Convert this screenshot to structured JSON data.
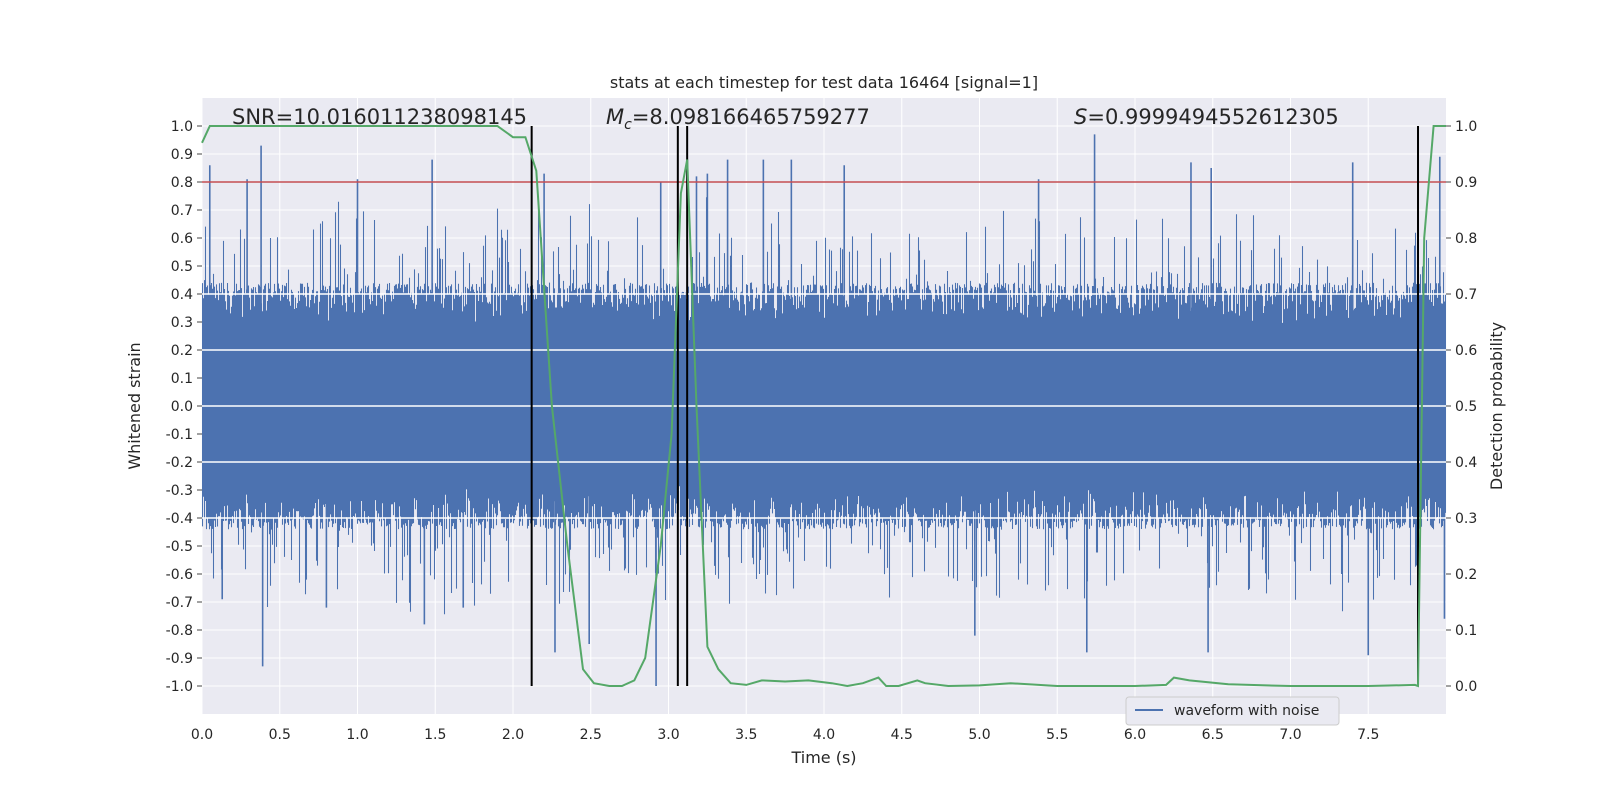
{
  "chart_data": {
    "type": "line",
    "title": "stats at each timestep for test data 16464 [signal=1]",
    "xlabel": "Time (s)",
    "ylabel": "Whitened strain",
    "y2label": "Detection probability",
    "xlim": [
      0.0,
      8.0
    ],
    "ylim": [
      -1.1,
      1.1
    ],
    "y2lim": [
      -0.05,
      1.05
    ],
    "xticks": [
      "0.0",
      "0.5",
      "1.0",
      "1.5",
      "2.0",
      "2.5",
      "3.0",
      "3.5",
      "4.0",
      "4.5",
      "5.0",
      "5.5",
      "6.0",
      "6.5",
      "7.0",
      "7.5"
    ],
    "yticks": [
      "1.0",
      "0.9",
      "0.8",
      "0.7",
      "0.6",
      "0.5",
      "0.4",
      "0.3",
      "0.2",
      "0.1",
      "0.0",
      "-0.1",
      "-0.2",
      "-0.3",
      "-0.4",
      "-0.5",
      "-0.6",
      "-0.7",
      "-0.8",
      "-0.9",
      "-1.0"
    ],
    "y2ticks": [
      "1.0",
      "0.9",
      "0.8",
      "0.7",
      "0.6",
      "0.5",
      "0.4",
      "0.3",
      "0.2",
      "0.1",
      "0.0"
    ],
    "annotations": {
      "snr": "SNR=10.016011238098145",
      "mc_symbol": "M",
      "mc_sub": "c",
      "mc_value": "=8.098166465759277",
      "s_symbol": "S",
      "s_value": "=0.9999494552612305"
    },
    "legend": {
      "label": "waveform with noise",
      "position": "lower-right"
    },
    "threshold_line": {
      "y2": 0.9,
      "color": "#c44e52"
    },
    "vertical_lines_x": [
      2.12,
      3.06,
      3.12,
      7.82
    ],
    "highlight_ygrid": [
      0.4,
      0.2,
      0.0,
      -0.2,
      -0.4
    ],
    "series": [
      {
        "name": "waveform with noise",
        "color": "#4c72b0",
        "description": "dense whitened noise, typical envelope about +/-0.45, spikes up to ~0.95",
        "spikes": [
          [
            0.05,
            0.86
          ],
          [
            0.38,
            0.93
          ],
          [
            0.39,
            -0.93
          ],
          [
            0.29,
            0.81
          ],
          [
            1.0,
            0.81
          ],
          [
            1.48,
            0.88
          ],
          [
            1.43,
            -0.78
          ],
          [
            2.2,
            0.83
          ],
          [
            2.27,
            -0.88
          ],
          [
            2.49,
            -0.85
          ],
          [
            2.92,
            -1.0
          ],
          [
            2.95,
            0.8
          ],
          [
            3.18,
            0.82
          ],
          [
            3.25,
            0.83
          ],
          [
            3.38,
            0.88
          ],
          [
            3.61,
            0.88
          ],
          [
            3.79,
            0.88
          ],
          [
            4.13,
            0.86
          ],
          [
            4.97,
            -0.82
          ],
          [
            5.38,
            0.81
          ],
          [
            5.74,
            0.97
          ],
          [
            5.69,
            -0.88
          ],
          [
            6.36,
            0.87
          ],
          [
            6.49,
            0.85
          ],
          [
            6.47,
            -0.88
          ],
          [
            7.4,
            0.87
          ],
          [
            7.5,
            -0.89
          ],
          [
            7.96,
            0.89
          ],
          [
            7.99,
            -0.76
          ],
          [
            0.13,
            -0.69
          ],
          [
            0.8,
            -0.72
          ],
          [
            1.68,
            -0.72
          ]
        ]
      },
      {
        "name": "detection probability",
        "axis": "right",
        "color": "#55a868",
        "x": [
          0.0,
          0.05,
          0.5,
          1.0,
          1.5,
          1.9,
          2.0,
          2.08,
          2.15,
          2.25,
          2.35,
          2.45,
          2.52,
          2.62,
          2.7,
          2.78,
          2.85,
          2.95,
          3.02,
          3.08,
          3.12,
          3.18,
          3.25,
          3.32,
          3.4,
          3.5,
          3.6,
          3.75,
          3.9,
          4.05,
          4.15,
          4.25,
          4.35,
          4.4,
          4.48,
          4.6,
          4.65,
          4.8,
          5.0,
          5.2,
          5.5,
          6.0,
          6.2,
          6.25,
          6.35,
          6.6,
          7.0,
          7.5,
          7.8,
          7.82,
          7.86,
          7.92,
          8.0
        ],
        "y": [
          0.97,
          1.0,
          1.0,
          1.0,
          1.0,
          1.0,
          0.98,
          0.98,
          0.92,
          0.5,
          0.25,
          0.03,
          0.005,
          0.0,
          0.0,
          0.01,
          0.05,
          0.25,
          0.45,
          0.88,
          0.94,
          0.5,
          0.07,
          0.03,
          0.005,
          0.002,
          0.01,
          0.008,
          0.01,
          0.005,
          0.0,
          0.005,
          0.015,
          0.0,
          0.0,
          0.01,
          0.005,
          0.0,
          0.001,
          0.005,
          0.0,
          0.0,
          0.002,
          0.015,
          0.01,
          0.003,
          0.0,
          0.0,
          0.002,
          0.0,
          0.8,
          1.0,
          1.0
        ]
      }
    ]
  }
}
